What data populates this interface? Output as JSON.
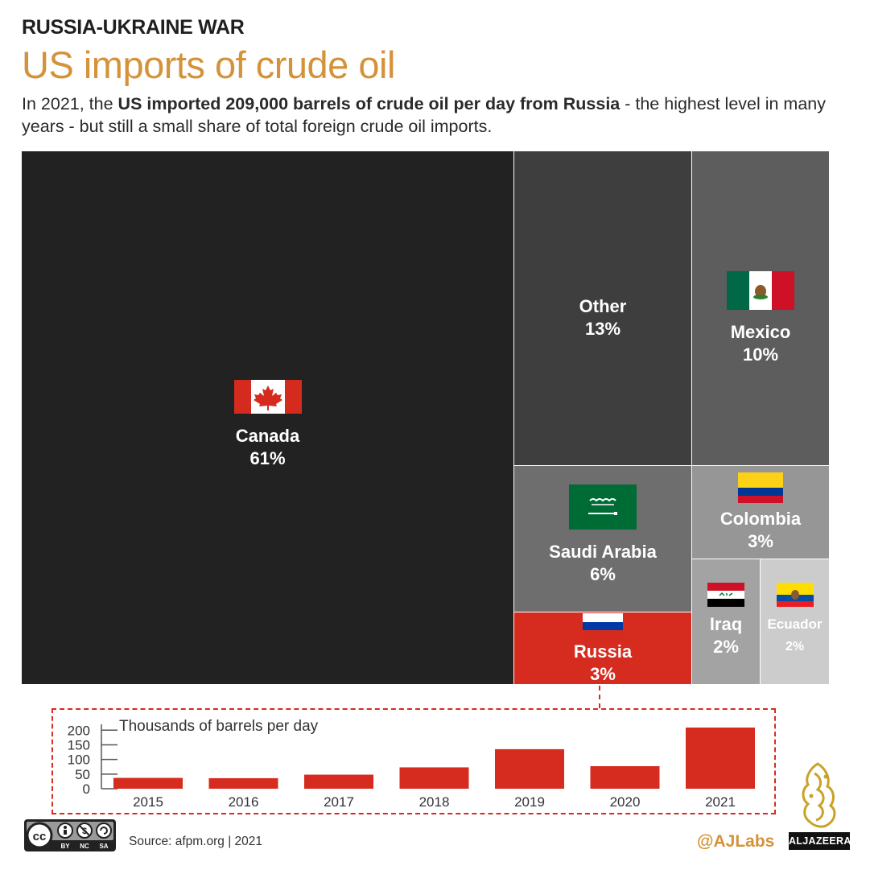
{
  "header": {
    "kicker": "RUSSIA-UKRAINE WAR",
    "title": "US imports of crude oil",
    "subtitle_pre": "In 2021, the ",
    "subtitle_bold": "US imported 209,000 barrels of crude oil per day from Russia",
    "subtitle_post": " - the highest level in many years - but still a small share of total foreign crude oil imports."
  },
  "chart_data": [
    {
      "type": "treemap",
      "items": [
        {
          "name": "Canada",
          "value": 61,
          "label": "61%",
          "color": "#222222"
        },
        {
          "name": "Other",
          "value": 13,
          "label": "13%",
          "color": "#3e3e3e"
        },
        {
          "name": "Mexico",
          "value": 10,
          "label": "10%",
          "color": "#5d5d5d"
        },
        {
          "name": "Saudi Arabia",
          "value": 6,
          "label": "6%",
          "color": "#6e6e6e"
        },
        {
          "name": "Colombia",
          "value": 3,
          "label": "3%",
          "color": "#969696"
        },
        {
          "name": "Russia",
          "value": 3,
          "label": "3%",
          "color": "#d62b1f"
        },
        {
          "name": "Iraq",
          "value": 2,
          "label": "2%",
          "color": "#a3a3a3"
        },
        {
          "name": "Ecuador",
          "value": 2,
          "label": "2%",
          "color": "#cccccc"
        }
      ]
    },
    {
      "type": "bar",
      "ylabel": "Thousands of barrels per day",
      "categories": [
        "2015",
        "2016",
        "2017",
        "2018",
        "2019",
        "2020",
        "2021"
      ],
      "values": [
        37,
        36,
        48,
        73,
        135,
        77,
        209
      ],
      "yticks": [
        0,
        50,
        100,
        150,
        200
      ],
      "ylim": [
        0,
        220
      ],
      "color": "#d62b1f"
    }
  ],
  "footer": {
    "cc_labels": [
      "BY",
      "NC",
      "SA"
    ],
    "source": "Source: afpm.org | 2021",
    "handle": "@AJLabs",
    "brand": "ALJAZEERA"
  },
  "icons": [
    "cc-license-icon",
    "aljazeera-logo-icon",
    "canada-flag-icon",
    "mexico-flag-icon",
    "saudi-arabia-flag-icon",
    "colombia-flag-icon",
    "russia-flag-icon",
    "iraq-flag-icon",
    "ecuador-flag-icon"
  ]
}
